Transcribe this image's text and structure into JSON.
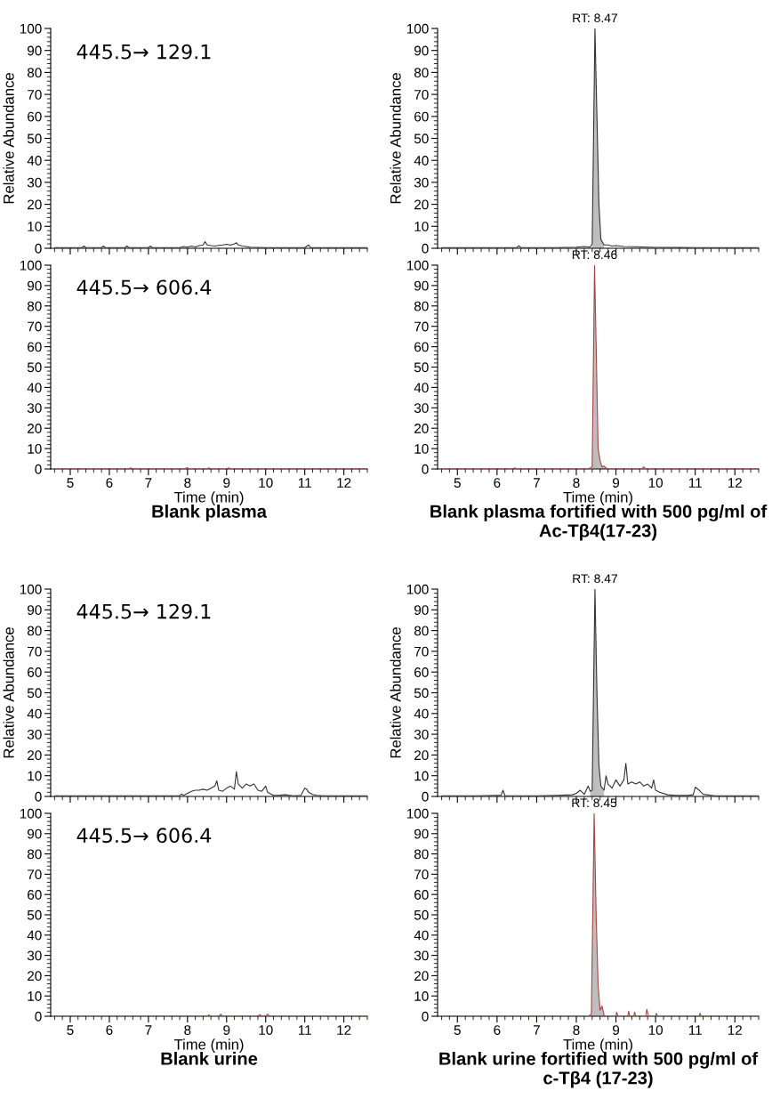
{
  "chart_data": [
    {
      "type": "line",
      "xlim": [
        4.5,
        12.6
      ],
      "ylim": [
        0,
        100
      ],
      "xticks": [
        {
          "value": 5,
          "label": null
        },
        {
          "value": 6,
          "label": null
        },
        {
          "value": 7,
          "label": null
        },
        {
          "value": 8,
          "label": null
        },
        {
          "value": 9,
          "label": null
        },
        {
          "value": 10,
          "label": null
        },
        {
          "value": 11,
          "label": null
        },
        {
          "value": 12,
          "label": null
        }
      ],
      "yticks": [
        0,
        10,
        20,
        30,
        40,
        50,
        60,
        70,
        80,
        90,
        100
      ],
      "tick_labels": "y",
      "ylabel": "Relative Abundance",
      "annotations": [
        "445.5→ 129.1"
      ],
      "series": [
        {
          "color": "#333333",
          "x": [
            4.6,
            5.0,
            5.3,
            5.35,
            5.4,
            5.8,
            5.85,
            5.9,
            6.4,
            6.45,
            6.5,
            7.0,
            7.05,
            7.1,
            7.4,
            7.8,
            7.9,
            8.0,
            8.1,
            8.2,
            8.3,
            8.4,
            8.45,
            8.5,
            8.6,
            8.7,
            8.8,
            8.9,
            9.0,
            9.1,
            9.2,
            9.25,
            9.3,
            9.4,
            9.5,
            9.6,
            9.8,
            10.0,
            10.5,
            11.0,
            11.1,
            11.15,
            11.2,
            11.5,
            12.0,
            12.6
          ],
          "values": [
            0.3,
            0.3,
            0.3,
            1,
            0.3,
            0.3,
            1,
            0.3,
            0.3,
            1,
            0.3,
            0.3,
            1,
            0.3,
            0.3,
            0.3,
            0.8,
            0.5,
            1,
            0.6,
            1.2,
            1.5,
            3,
            1.5,
            1.2,
            1,
            1.3,
            1.5,
            1.8,
            1.4,
            2,
            2.5,
            1.5,
            1,
            0.8,
            0.5,
            0.4,
            0.3,
            0.3,
            0.3,
            1.5,
            0.3,
            0.3,
            0.3,
            0.3,
            0.3
          ]
        }
      ]
    },
    {
      "type": "line",
      "xlim": [
        4.5,
        12.6
      ],
      "ylim": [
        0,
        100
      ],
      "xticks": [
        5,
        6,
        7,
        8,
        9,
        10,
        11,
        12
      ],
      "yticks": [
        0,
        10,
        20,
        30,
        40,
        50,
        60,
        70,
        80,
        90,
        100
      ],
      "xlabel": "Time (min)",
      "title": "Blank plasma",
      "annotations": [
        "445.5→ 606.4"
      ],
      "series": [
        {
          "color": "#a94442",
          "x": [
            4.6,
            6.5,
            6.55,
            6.6,
            7.9,
            8.0,
            8.05,
            8.5,
            8.55,
            8.6,
            9.0,
            9.05,
            9.1,
            12.6
          ],
          "values": [
            0,
            0,
            0.5,
            0,
            0,
            0.6,
            0,
            0,
            0.5,
            0,
            0,
            0.5,
            0,
            0
          ]
        }
      ]
    },
    {
      "type": "line",
      "xlim": [
        4.5,
        12.6
      ],
      "ylim": [
        0,
        100
      ],
      "xticks": [
        {
          "value": 5,
          "label": null
        },
        {
          "value": 6,
          "label": null
        },
        {
          "value": 7,
          "label": null
        },
        {
          "value": 8,
          "label": null
        },
        {
          "value": 9,
          "label": null
        },
        {
          "value": 10,
          "label": null
        },
        {
          "value": 11,
          "label": null
        },
        {
          "value": 12,
          "label": null
        }
      ],
      "yticks": [
        0,
        10,
        20,
        30,
        40,
        50,
        60,
        70,
        80,
        90,
        100
      ],
      "tick_labels": "y",
      "ylabel": "Relative Abundance",
      "annotations": [
        {
          "text": "RT: 8.47",
          "x": 8.47,
          "y": 100
        }
      ],
      "series": [
        {
          "type": "area",
          "color": "#bebebe",
          "x": [
            8.4,
            8.47,
            8.52,
            8.57,
            8.62,
            8.7
          ],
          "values": [
            2,
            100,
            60,
            20,
            4,
            1.5
          ]
        },
        {
          "color": "#333333",
          "x": [
            4.6,
            5.5,
            6.0,
            6.5,
            6.55,
            6.6,
            7.5,
            8.0,
            8.2,
            8.35,
            8.4,
            8.47,
            8.52,
            8.57,
            8.62,
            8.7,
            8.8,
            8.9,
            9.0,
            9.2,
            9.5,
            10.0,
            11.0,
            12.6
          ],
          "values": [
            0.3,
            0.3,
            0.3,
            0.3,
            1.2,
            0.3,
            0.3,
            0.5,
            0.8,
            0.5,
            2,
            100,
            60,
            20,
            4,
            1.5,
            1.5,
            1,
            1.2,
            0.8,
            0.7,
            0.4,
            0.3,
            0.3
          ]
        }
      ]
    },
    {
      "type": "line",
      "xlim": [
        4.5,
        12.6
      ],
      "ylim": [
        0,
        100
      ],
      "xticks": [
        5,
        6,
        7,
        8,
        9,
        10,
        11,
        12
      ],
      "yticks": [
        0,
        10,
        20,
        30,
        40,
        50,
        60,
        70,
        80,
        90,
        100
      ],
      "xlabel": "Time (min)",
      "title": "Blank plasma fortified with 500 pg/ml of Ac-Tβ4(17-23)",
      "annotations": [
        {
          "text": "RT: 8.46",
          "x": 8.46,
          "y": 100
        }
      ],
      "series": [
        {
          "type": "area",
          "color": "#bebebe",
          "x": [
            8.4,
            8.46,
            8.5,
            8.55,
            8.6,
            8.65,
            8.7,
            8.75
          ],
          "values": [
            1,
            100,
            60,
            10,
            4,
            1,
            1.5,
            0.5
          ]
        },
        {
          "color": "#a94442",
          "x": [
            4.6,
            6.4,
            6.45,
            6.5,
            8.3,
            8.4,
            8.46,
            8.5,
            8.55,
            8.6,
            8.65,
            8.7,
            8.75,
            8.8,
            9.0,
            9.65,
            9.7,
            9.75,
            12.6
          ],
          "values": [
            0,
            0,
            0.5,
            0,
            0,
            1,
            100,
            60,
            10,
            4,
            1,
            1.5,
            0.5,
            0,
            0,
            0,
            1,
            0,
            0
          ]
        }
      ]
    },
    {
      "type": "line",
      "xlim": [
        4.5,
        12.6
      ],
      "ylim": [
        0,
        100
      ],
      "xticks": [
        {
          "value": 5,
          "label": null
        },
        {
          "value": 6,
          "label": null
        },
        {
          "value": 7,
          "label": null
        },
        {
          "value": 8,
          "label": null
        },
        {
          "value": 9,
          "label": null
        },
        {
          "value": 10,
          "label": null
        },
        {
          "value": 11,
          "label": null
        },
        {
          "value": 12,
          "label": null
        }
      ],
      "yticks": [
        0,
        10,
        20,
        30,
        40,
        50,
        60,
        70,
        80,
        90,
        100
      ],
      "tick_labels": "y",
      "ylabel": "Relative Abundance",
      "annotations": [
        "445.5→ 129.1"
      ],
      "series": [
        {
          "color": "#333333",
          "x": [
            4.6,
            5.0,
            5.5,
            6.0,
            6.5,
            7.0,
            7.5,
            7.8,
            7.85,
            7.9,
            8.0,
            8.1,
            8.2,
            8.3,
            8.4,
            8.5,
            8.6,
            8.7,
            8.75,
            8.8,
            8.9,
            9.0,
            9.1,
            9.2,
            9.25,
            9.3,
            9.4,
            9.5,
            9.6,
            9.7,
            9.8,
            9.9,
            10.0,
            10.05,
            10.1,
            10.2,
            10.3,
            10.5,
            10.7,
            10.9,
            11.0,
            11.05,
            11.1,
            11.2,
            11.3,
            11.5,
            12.0,
            12.6
          ],
          "values": [
            0.3,
            0.3,
            0.3,
            0.3,
            0.3,
            0.3,
            0.3,
            0.3,
            1.2,
            0.5,
            1.5,
            2.5,
            3,
            3,
            3.5,
            3,
            4,
            5,
            7.5,
            3,
            2.5,
            4,
            5,
            3.5,
            12,
            6,
            4,
            6,
            5,
            6,
            3,
            2.5,
            5,
            2,
            1.5,
            0.5,
            0.5,
            0.8,
            0.3,
            0.5,
            4,
            3.5,
            2,
            1,
            0.5,
            0.3,
            0.3,
            0.3
          ]
        }
      ]
    },
    {
      "type": "line",
      "xlim": [
        4.5,
        12.6
      ],
      "ylim": [
        0,
        100
      ],
      "xticks": [
        5,
        6,
        7,
        8,
        9,
        10,
        11,
        12
      ],
      "yticks": [
        0,
        10,
        20,
        30,
        40,
        50,
        60,
        70,
        80,
        90,
        100
      ],
      "xlabel": "Time (min)",
      "title": "Blank urine",
      "annotations": [
        "445.5→ 606.4"
      ],
      "series": [
        {
          "color": "#a94442",
          "x": [
            4.6,
            8.5,
            8.55,
            8.6,
            8.8,
            8.85,
            8.9,
            9.8,
            9.85,
            9.9,
            10.0,
            10.05,
            10.1,
            12.6
          ],
          "values": [
            0,
            0,
            0.7,
            0,
            0,
            1,
            0,
            0,
            0.8,
            0,
            0,
            1,
            0,
            0
          ]
        }
      ]
    },
    {
      "type": "line",
      "xlim": [
        4.5,
        12.6
      ],
      "ylim": [
        0,
        100
      ],
      "xticks": [
        {
          "value": 5,
          "label": null
        },
        {
          "value": 6,
          "label": null
        },
        {
          "value": 7,
          "label": null
        },
        {
          "value": 8,
          "label": null
        },
        {
          "value": 9,
          "label": null
        },
        {
          "value": 10,
          "label": null
        },
        {
          "value": 11,
          "label": null
        },
        {
          "value": 12,
          "label": null
        }
      ],
      "yticks": [
        0,
        10,
        20,
        30,
        40,
        50,
        60,
        70,
        80,
        90,
        100
      ],
      "tick_labels": "y",
      "ylabel": "Relative Abundance",
      "annotations": [
        {
          "text": "RT: 8.47",
          "x": 8.47,
          "y": 100
        }
      ],
      "series": [
        {
          "type": "area",
          "color": "#bebebe",
          "x": [
            8.35,
            8.4,
            8.47,
            8.52,
            8.57,
            8.62,
            8.7
          ],
          "values": [
            2.5,
            3,
            100,
            50,
            15,
            5,
            3
          ]
        },
        {
          "color": "#333333",
          "x": [
            4.6,
            5.5,
            6.0,
            6.1,
            6.15,
            6.2,
            7.0,
            7.5,
            7.9,
            8.0,
            8.1,
            8.2,
            8.3,
            8.35,
            8.4,
            8.47,
            8.52,
            8.57,
            8.62,
            8.7,
            8.75,
            8.8,
            8.9,
            9.0,
            9.1,
            9.2,
            9.25,
            9.3,
            9.4,
            9.5,
            9.6,
            9.7,
            9.8,
            9.9,
            9.95,
            10.0,
            10.1,
            10.3,
            10.5,
            10.8,
            10.95,
            11.0,
            11.1,
            11.2,
            11.5,
            12.6
          ],
          "values": [
            0.3,
            0.3,
            0.5,
            0.5,
            3,
            0.3,
            0.3,
            0.5,
            0.8,
            1.5,
            3,
            1,
            5,
            2.5,
            3,
            100,
            50,
            15,
            5,
            3,
            10,
            6,
            4,
            8,
            5,
            8,
            16,
            6,
            7,
            6,
            7,
            5,
            6,
            4,
            8,
            3,
            2,
            0.8,
            0.5,
            0.5,
            0.8,
            4.5,
            3,
            1,
            0.3,
            0.3
          ]
        }
      ]
    },
    {
      "type": "line",
      "xlim": [
        4.5,
        12.6
      ],
      "ylim": [
        0,
        100
      ],
      "xticks": [
        5,
        6,
        7,
        8,
        9,
        10,
        11,
        12
      ],
      "yticks": [
        0,
        10,
        20,
        30,
        40,
        50,
        60,
        70,
        80,
        90,
        100
      ],
      "xlabel": "Time (min)",
      "title": "Blank urine fortified with 500 pg/ml of c-Tβ4 (17-23)",
      "annotations": [
        {
          "text": "RT: 8.45",
          "x": 8.45,
          "y": 100
        }
      ],
      "series": [
        {
          "type": "area",
          "color": "#bebebe",
          "x": [
            8.38,
            8.45,
            8.5,
            8.55,
            8.6,
            8.65,
            8.7
          ],
          "values": [
            1,
            100,
            50,
            15,
            3,
            5,
            0.5
          ]
        },
        {
          "color": "#a94442",
          "x": [
            4.6,
            8.3,
            8.38,
            8.45,
            8.5,
            8.55,
            8.6,
            8.65,
            8.7,
            8.75,
            9.0,
            9.02,
            9.05,
            9.3,
            9.32,
            9.35,
            9.45,
            9.47,
            9.5,
            9.75,
            9.78,
            9.82,
            10.0,
            10.02,
            10.05,
            11.1,
            11.12,
            11.15,
            12.6
          ],
          "values": [
            0,
            0,
            1,
            100,
            50,
            15,
            3,
            5,
            0.5,
            0,
            0,
            2,
            0,
            0,
            2.5,
            0,
            0,
            2,
            0,
            0,
            3.5,
            0,
            0,
            1.5,
            0,
            0,
            1.5,
            0,
            0
          ]
        }
      ]
    }
  ]
}
